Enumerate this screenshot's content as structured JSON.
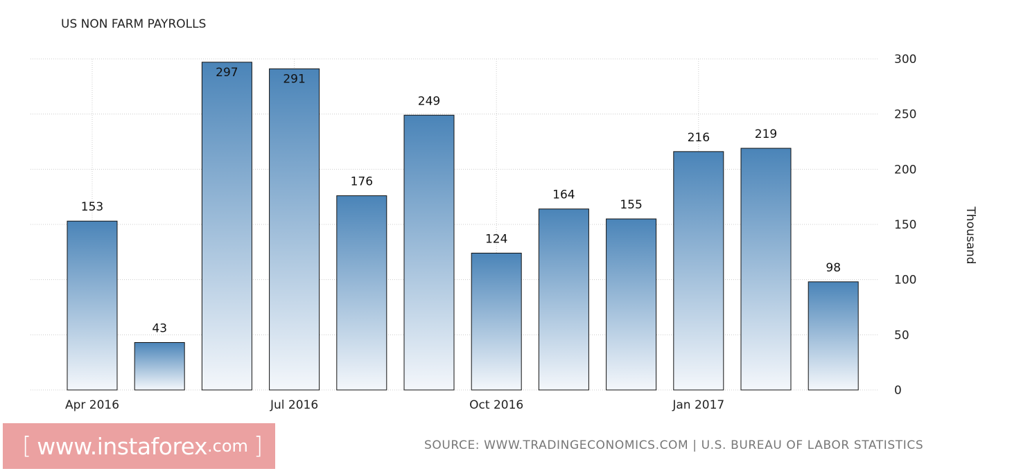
{
  "chart_data": {
    "type": "bar",
    "title": "US NON FARM PAYROLLS",
    "ylabel": "Thousand",
    "ylim": [
      0,
      300
    ],
    "yticks": [
      "0",
      "50",
      "100",
      "150",
      "200",
      "250",
      "300"
    ],
    "x_tick_labels": [
      {
        "label": "Apr 2016",
        "index": 0
      },
      {
        "label": "Jul 2016",
        "index": 3
      },
      {
        "label": "Oct 2016",
        "index": 6
      },
      {
        "label": "Jan 2017",
        "index": 9
      }
    ],
    "categories": [
      "2016-04",
      "2016-05",
      "2016-06",
      "2016-07",
      "2016-08",
      "2016-09",
      "2016-10",
      "2016-11",
      "2016-12",
      "2017-01",
      "2017-02",
      "2017-03"
    ],
    "values": [
      153,
      43,
      297,
      291,
      176,
      249,
      124,
      164,
      155,
      216,
      219,
      98
    ],
    "grid": true,
    "axis_position": "right",
    "colors": {
      "bar_top": "#4a84b8",
      "bar_bottom": "#f4f7fb",
      "bar_stroke": "#111111",
      "grid": "#cccccc"
    }
  },
  "footer": {
    "source": "SOURCE: WWW.TRADINGECONOMICS.COM | U.S. BUREAU OF LABOR STATISTICS",
    "logo_open": "[",
    "logo_main": "www.instaforex",
    "logo_com": ".com",
    "logo_close": "]"
  }
}
